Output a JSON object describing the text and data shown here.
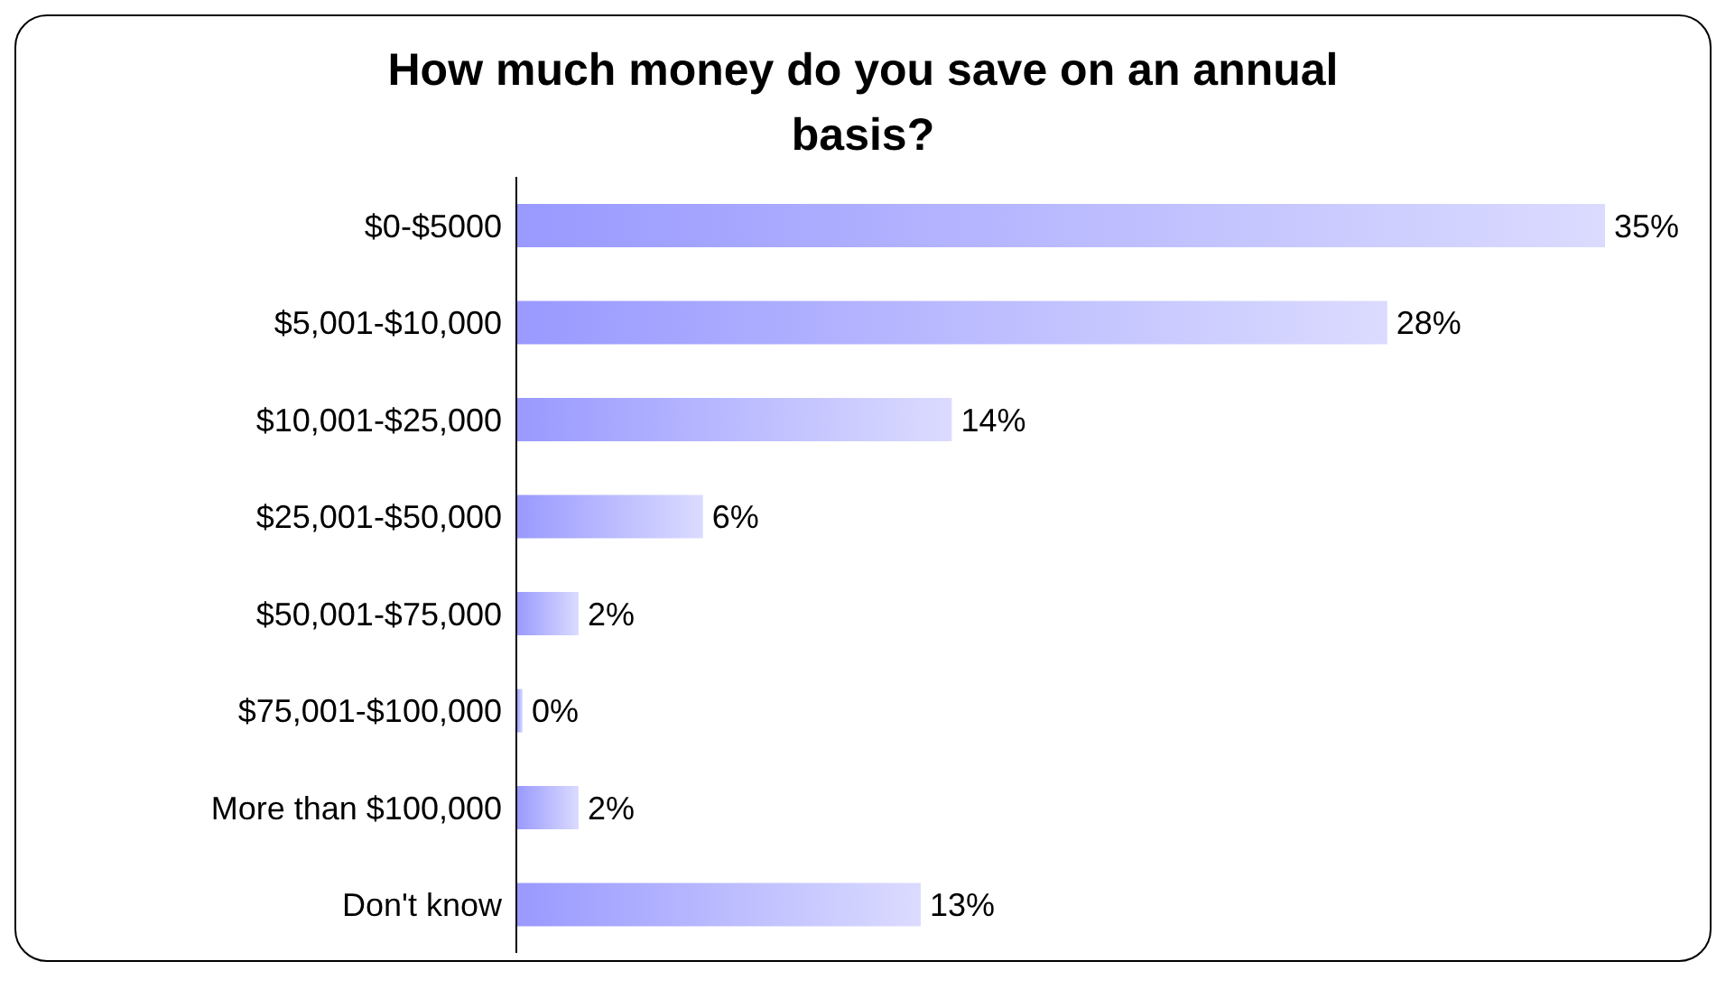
{
  "chart_data": {
    "type": "bar",
    "orientation": "horizontal",
    "title": "How much money do you save on an annual basis?",
    "categories": [
      "$0-$5000",
      "$5,001-$10,000",
      "$10,001-$25,000",
      "$25,001-$50,000",
      "$50,001-$75,000",
      "$75,001-$100,000",
      "More than $100,000",
      "Don't know"
    ],
    "values": [
      35,
      28,
      14,
      6,
      2,
      0.2,
      2,
      13
    ],
    "value_labels": [
      "35%",
      "28%",
      "14%",
      "6%",
      "2%",
      "0%",
      "2%",
      "13%"
    ],
    "color": "#9999ff",
    "grid": false
  }
}
